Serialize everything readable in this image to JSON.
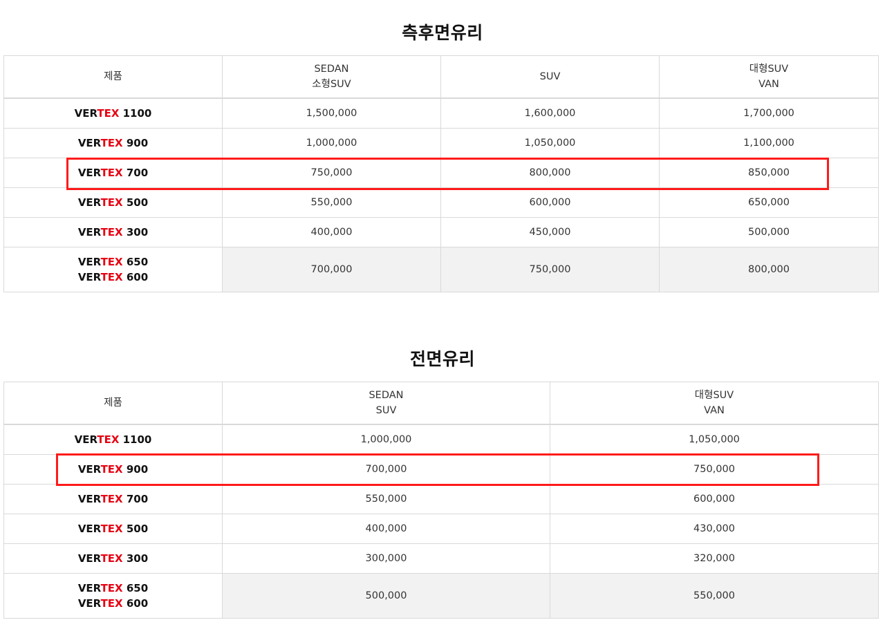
{
  "colors": {
    "accent_red": "#e60012",
    "highlight": "#ff1a1a",
    "shade": "#f2f2f2",
    "border": "#d9d9d9"
  },
  "rear": {
    "title": "측후면유리",
    "headers": [
      {
        "line1": "제품",
        "line2": ""
      },
      {
        "line1": "SEDAN",
        "line2": "소형SUV"
      },
      {
        "line1": "SUV",
        "line2": ""
      },
      {
        "line1": "대형SUV",
        "line2": "VAN"
      }
    ],
    "rows": [
      {
        "prod": [
          {
            "ver": "VER",
            "tex": "TEX",
            "num": " 1100"
          }
        ],
        "values": [
          "1,500,000",
          "1,600,000",
          "1,700,000"
        ]
      },
      {
        "prod": [
          {
            "ver": "VER",
            "tex": "TEX",
            "num": " 900"
          }
        ],
        "values": [
          "1,000,000",
          "1,050,000",
          "1,100,000"
        ]
      },
      {
        "prod": [
          {
            "ver": "VER",
            "tex": "TEX",
            "num": " 700"
          }
        ],
        "values": [
          "750,000",
          "800,000",
          "850,000"
        ]
      },
      {
        "prod": [
          {
            "ver": "VER",
            "tex": "TEX",
            "num": " 500"
          }
        ],
        "values": [
          "550,000",
          "600,000",
          "650,000"
        ]
      },
      {
        "prod": [
          {
            "ver": "VER",
            "tex": "TEX",
            "num": " 300"
          }
        ],
        "values": [
          "400,000",
          "450,000",
          "500,000"
        ]
      },
      {
        "prod": [
          {
            "ver": "VER",
            "tex": "TEX",
            "num": " 650"
          },
          {
            "ver": "VER",
            "tex": "TEX",
            "num": " 600"
          }
        ],
        "values": [
          "700,000",
          "750,000",
          "800,000"
        ]
      }
    ]
  },
  "front": {
    "title": "전면유리",
    "headers": [
      {
        "line1": "제품",
        "line2": ""
      },
      {
        "line1": "SEDAN",
        "line2": "SUV"
      },
      {
        "line1": "대형SUV",
        "line2": "VAN"
      }
    ],
    "rows": [
      {
        "prod": [
          {
            "ver": "VER",
            "tex": "TEX",
            "num": " 1100"
          }
        ],
        "values": [
          "1,000,000",
          "1,050,000"
        ]
      },
      {
        "prod": [
          {
            "ver": "VER",
            "tex": "TEX",
            "num": " 900"
          }
        ],
        "values": [
          "700,000",
          "750,000"
        ]
      },
      {
        "prod": [
          {
            "ver": "VER",
            "tex": "TEX",
            "num": " 700"
          }
        ],
        "values": [
          "550,000",
          "600,000"
        ]
      },
      {
        "prod": [
          {
            "ver": "VER",
            "tex": "TEX",
            "num": " 500"
          }
        ],
        "values": [
          "400,000",
          "430,000"
        ]
      },
      {
        "prod": [
          {
            "ver": "VER",
            "tex": "TEX",
            "num": " 300"
          }
        ],
        "values": [
          "300,000",
          "320,000"
        ]
      },
      {
        "prod": [
          {
            "ver": "VER",
            "tex": "TEX",
            "num": " 650"
          },
          {
            "ver": "VER",
            "tex": "TEX",
            "num": " 600"
          }
        ],
        "values": [
          "500,000",
          "550,000"
        ]
      }
    ]
  }
}
